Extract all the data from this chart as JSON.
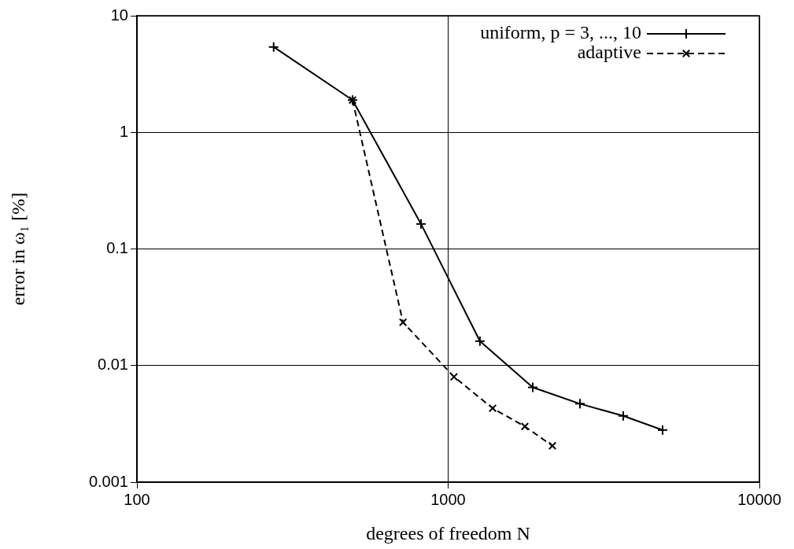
{
  "chart_data": {
    "type": "line",
    "xlabel": "degrees of freedom N",
    "ylabel": "error in ω₁ [%]",
    "xlim": [
      100,
      10000
    ],
    "xticks": [
      100,
      1000,
      10000
    ],
    "ylim": [
      0.001,
      10
    ],
    "yticks": [
      0.001,
      0.01,
      0.1,
      1,
      10
    ],
    "log": "xy",
    "grid": true,
    "legend": "top right",
    "marker": "cross",
    "series": [
      {
        "name": "uniform, p = 3, ..., 10",
        "color": "#000000",
        "line_style": "solid",
        "x": [
          275,
          493,
          818,
          1265,
          1870,
          2652,
          3653,
          4887
        ],
        "values": [
          5.4,
          1.89,
          0.164,
          0.0162,
          0.0065,
          0.0047,
          0.0037,
          0.0028
        ]
      },
      {
        "name": "adaptive",
        "color": "#000000",
        "line_style": "dashed",
        "x": [
          493,
          716,
          1044,
          1390,
          1764,
          2163
        ],
        "values": [
          1.89,
          0.0235,
          0.008,
          0.0043,
          0.003,
          0.00205
        ]
      }
    ]
  }
}
